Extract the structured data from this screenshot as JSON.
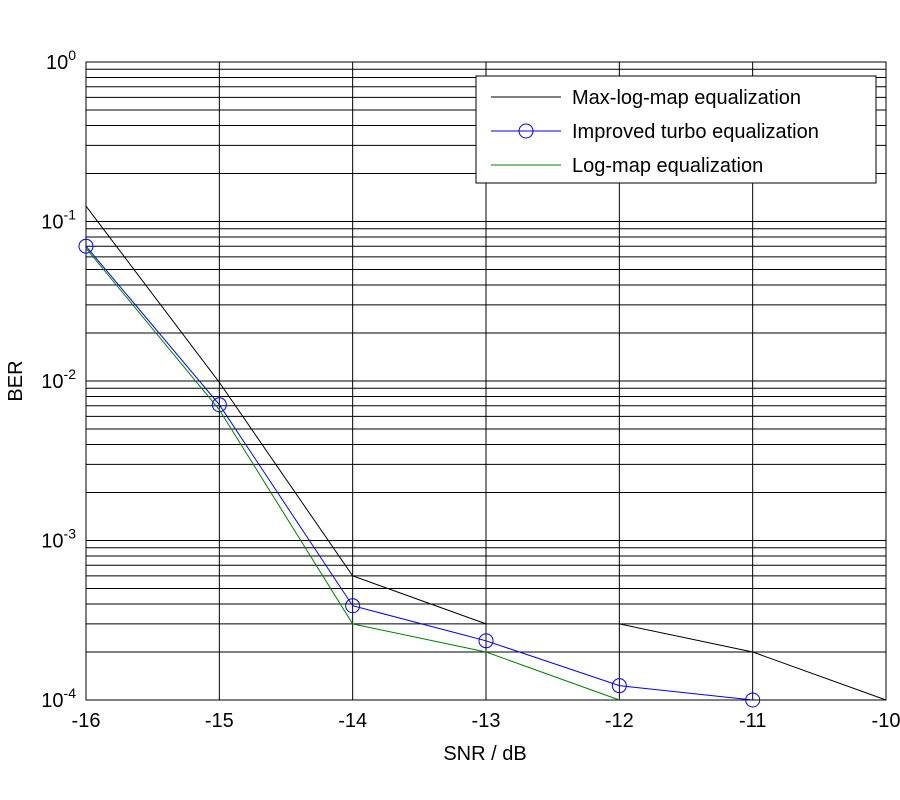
{
  "chart_data": {
    "type": "line",
    "xlabel": "SNR / dB",
    "ylabel": "BER",
    "log_y": true,
    "grid": true,
    "minor_grid": true,
    "legend": "upper right",
    "xlim": [
      -16,
      -10
    ],
    "xticks": [
      -16,
      -15,
      -14,
      -13,
      -12,
      -11,
      -10
    ],
    "ylim": [
      0.0001,
      1
    ],
    "yticks": [
      {
        "value": 0.0001,
        "label": "10^-4"
      },
      {
        "value": 0.001,
        "label": "10^-3"
      },
      {
        "value": 0.01,
        "label": "10^-2"
      },
      {
        "value": 0.1,
        "label": "10^-1"
      },
      {
        "value": 1,
        "label": "10^0"
      }
    ],
    "series": [
      {
        "name": "Max-log-map equalization",
        "color": "#000000",
        "marker": "none",
        "x": [
          -16,
          -15,
          -14,
          -13,
          -12.5,
          -12,
          -11,
          -10
        ],
        "values": [
          0.125,
          0.0098,
          0.0006,
          0.0003,
          null,
          0.0003,
          0.0002,
          0.0001
        ]
      },
      {
        "name": "Improved turbo equalization",
        "color": "#0000ff",
        "marker": "circle",
        "x": [
          -16,
          -15,
          -14,
          -13,
          -12,
          -11
        ],
        "values": [
          0.07,
          0.0071,
          0.00039,
          0.000235,
          0.000123,
          0.0001
        ]
      },
      {
        "name": "Log-map equalization",
        "color": "#008000",
        "marker": "none",
        "x": [
          -16,
          -15,
          -14,
          -13,
          -12
        ],
        "values": [
          0.068,
          0.0066,
          0.0003,
          0.0002,
          0.0001
        ]
      }
    ]
  }
}
